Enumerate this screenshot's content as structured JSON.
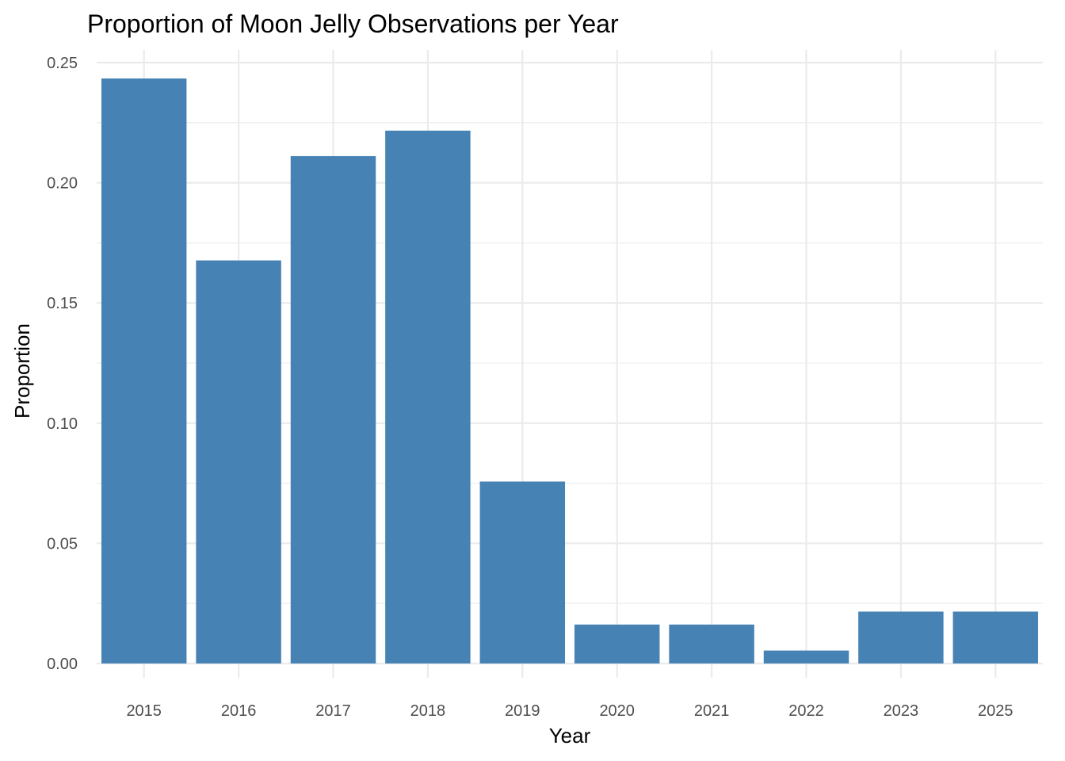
{
  "chart_data": {
    "type": "bar",
    "title": "Proportion of Moon Jelly Observations per Year",
    "xlabel": "Year",
    "ylabel": "Proportion",
    "categories": [
      "2015",
      "2016",
      "2017",
      "2018",
      "2019",
      "2020",
      "2021",
      "2022",
      "2023",
      "2025"
    ],
    "values": [
      0.2434,
      0.1677,
      0.2111,
      0.2217,
      0.0757,
      0.0162,
      0.0162,
      0.0054,
      0.0216,
      0.0216
    ],
    "ylim": [
      0,
      0.25
    ],
    "yticks": [
      0,
      0.05,
      0.1,
      0.15,
      0.2,
      0.25
    ],
    "ytick_labels": [
      "0.00",
      "0.05",
      "0.10",
      "0.15",
      "0.20",
      "0.25"
    ],
    "bar_color": "#4682b4",
    "grid": true,
    "legend": "none"
  }
}
